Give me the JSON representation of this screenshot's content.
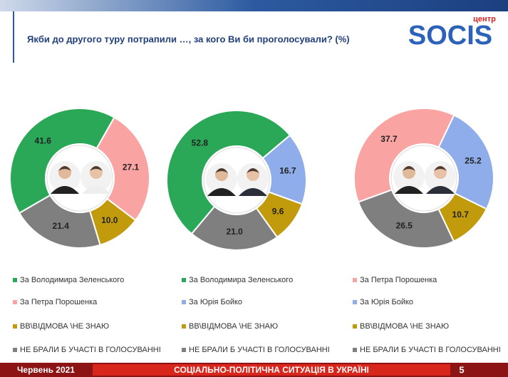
{
  "header": {
    "title": "Якби до другого туру потрапили …, за кого Ви би проголосували? (%)",
    "logo_small": "центр",
    "logo": "SOCIS"
  },
  "chart_data": [
    {
      "type": "pie",
      "categories": [
        "За Володимира Зеленського",
        "За Петра Порошенка",
        "ВВ\\ВІДМОВА \\НЕ ЗНАЮ",
        "НЕ БРАЛИ Б УЧАСТІ В ГОЛОСУВАННІ"
      ],
      "values": [
        41.6,
        27.1,
        10.0,
        21.4
      ],
      "value_labels": [
        "41.6",
        "27.1",
        "10.0",
        "21.4"
      ],
      "colors": [
        "#2aa857",
        "#f9a3a3",
        "#c29b0c",
        "#7f7f7f"
      ]
    },
    {
      "type": "pie",
      "categories": [
        "За Володимира Зеленського",
        "За Юрія Бойко",
        "ВВ\\ВІДМОВА \\НЕ ЗНАЮ",
        "НЕ БРАЛИ Б УЧАСТІ В ГОЛОСУВАННІ"
      ],
      "values": [
        52.8,
        16.7,
        9.6,
        21.0
      ],
      "value_labels": [
        "52.8",
        "16.7",
        "9.6",
        "21.0"
      ],
      "colors": [
        "#2aa857",
        "#8fadea",
        "#c29b0c",
        "#7f7f7f"
      ]
    },
    {
      "type": "pie",
      "categories": [
        "За Петра Порошенка",
        "За Юрія Бойко",
        "ВВ\\ВІДМОВА \\НЕ ЗНАЮ",
        "НЕ БРАЛИ Б УЧАСТІ В ГОЛОСУВАННІ"
      ],
      "values": [
        37.7,
        25.2,
        10.7,
        26.5
      ],
      "value_labels": [
        "37.7",
        "25.2",
        "10.7",
        "26.5"
      ],
      "colors": [
        "#f9a3a3",
        "#8fadea",
        "#c29b0c",
        "#7f7f7f"
      ]
    }
  ],
  "footer": {
    "date": "Червень 2021",
    "title": "СОЦІАЛЬНО-ПОЛІТИЧНА СИТУАЦІЯ В УКРАЇНІ",
    "page": "5"
  }
}
